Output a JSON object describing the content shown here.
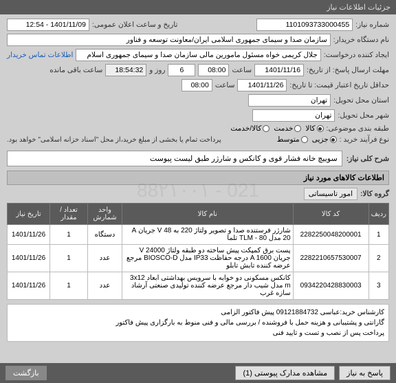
{
  "titleBar": "جزئیات اطلاعات نیاز",
  "fields": {
    "reqNumber": {
      "label": "شماره نیاز:",
      "value": "1101093733000455"
    },
    "announceDate": {
      "label": "تاریخ و ساعت اعلان عمومی:",
      "value": "1401/11/09 - 12:54"
    },
    "buyerOrg": {
      "label": "نام دستگاه خریدار:",
      "value": "سازمان صدا و سیمای جمهوری اسلامی ایران/معاونت توسعه و فناور"
    },
    "requester": {
      "label": "ایجاد کننده درخواست:",
      "value": "جلال کریمی خواه مسئول مامورین مالی  سازمان صدا و سیمای جمهوری اسلام",
      "link": "اطلاعات تماس خریدار"
    },
    "responseDeadline": {
      "label": "مهلت ارسال پاسخ: از تاریخ:",
      "date": "1401/11/16",
      "timeLabel": "ساعت",
      "time": "08:00",
      "day": "6",
      "dayLabel": "روز و",
      "countdown": "18:54:32",
      "remainLabel": "ساعت باقی مانده"
    },
    "creditExpiry": {
      "label": "حداقل تاریخ اعتبار قیمت: تا تاریخ:",
      "date": "1401/11/26",
      "timeLabel": "ساعت",
      "time": "08:00"
    },
    "deliveryProvince": {
      "label": "استان محل تحویل:",
      "value": "تهران"
    },
    "deliveryCity": {
      "label": "شهر محل تحویل:",
      "value": "تهران"
    },
    "category": {
      "label": "طبقه بندی موضوعی:",
      "options": [
        {
          "label": "کالا",
          "checked": true
        },
        {
          "label": "خدمت",
          "checked": false
        },
        {
          "label": "کالا/خدمت",
          "checked": false
        }
      ]
    },
    "purchaseType": {
      "label": "نوع فرآیند خرید :",
      "options": [
        {
          "label": "جزیی",
          "checked": true
        },
        {
          "label": "متوسط",
          "checked": false
        }
      ],
      "note": "پرداخت تمام یا بخشی از مبلغ خرید،از محل \"اسناد خزانه اسلامی\" خواهد بود."
    }
  },
  "generalDesc": {
    "label": "شرح کلی نیاز:",
    "value": "سوییچ خانه فشار قوی و کانکس و شارژر طبق لیست پیوست"
  },
  "itemsHeader": "اطلاعات کالاهای مورد نیاز",
  "itemGroup": {
    "label": "گروه کالا:",
    "value": "امور تاسیساتی"
  },
  "table": {
    "columns": [
      "ردیف",
      "کد کالا",
      "نام کالا",
      "واحد شمارش",
      "تعداد / مقدار",
      "تاریخ نیاز"
    ],
    "colWidths": [
      "28px",
      "110px",
      "auto",
      "50px",
      "55px",
      "62px"
    ],
    "rows": [
      {
        "n": "1",
        "code": "2282250048200001",
        "name": "شارژر فرستنده صدا و تصویر ولتاژ 220 به V 48 جریان A 20 مدل TLM - 80 تلما",
        "unit": "دستگاه",
        "qty": "1",
        "date": "1401/11/26"
      },
      {
        "n": "2",
        "code": "2282210657530007",
        "name": "پست برق کمپکت پیش ساخته دو طبقه ولتاژ V 24000 جریان A 1600 درجه حفاظت IP33 مدل BIOSCO-D مرجع عرضه کننده تابش تابلو",
        "unit": "عدد",
        "qty": "1",
        "date": "1401/11/26"
      },
      {
        "n": "3",
        "code": "0934220428830003",
        "name": "کانکس مسکونی دو خوابه با سرویس بهداشتی ابعاد 3x12 m مدل شیب دار مرجع عرضه کننده تولیدی صنعتی آرشاد سازه غرب",
        "unit": "عدد",
        "qty": "1",
        "date": "1401/11/26"
      }
    ]
  },
  "footerNotes": [
    "کارشناس خرید:عباسی  09121884732  پیش فاکتور الزامی",
    "گارانتی و پشتیبانی و هزینه حمل با فروشنده / بررسی مالی و فنی منوط به بارگزاری پیش فاکتور",
    "پرداخت پس از نصب و تست و تایید فنی"
  ],
  "bottomBar": {
    "respond": "پاسخ به نیاز",
    "attachments": "مشاهده مدارک پیوستی (1)",
    "back": "بازگشت"
  },
  "watermark": "021 - 88۲۱۰۰۱",
  "colors": {
    "headerBg": "#5a5a5a",
    "panelBg": "#d0d0d0",
    "fieldBg": "#ffffff",
    "link": "#1a5db8"
  }
}
